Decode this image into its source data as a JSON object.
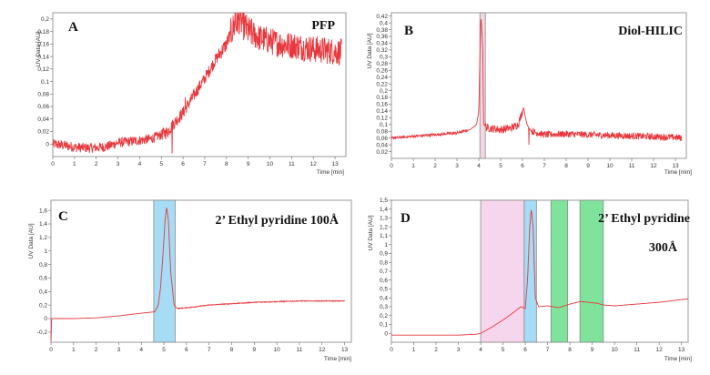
{
  "chart_data": [
    {
      "type": "line",
      "panel": "A",
      "column": "PFP",
      "ylabel": "UV Data [AU]",
      "xlabel": "Time [min]",
      "xlim": [
        0,
        13.5
      ],
      "ylim": [
        -0.02,
        0.21
      ],
      "x_ticks": [
        0,
        1,
        2,
        3,
        4,
        5,
        6,
        7,
        8,
        9,
        10,
        11,
        12,
        13
      ],
      "y_ticks": [
        0,
        0.02,
        0.04,
        0.06,
        0.08,
        0.1,
        0.12,
        0.14,
        0.16,
        0.18,
        0.2
      ],
      "y_tick_labels": [
        "0",
        "0,02",
        "0,04",
        "0,06",
        "0,08",
        "0,1",
        "0,12",
        "0,14",
        "0,16",
        "0,18",
        "0,2"
      ],
      "color": "#e8383d",
      "points": [
        [
          0,
          0
        ],
        [
          0.5,
          -0.002
        ],
        [
          1,
          -0.005
        ],
        [
          1.5,
          -0.006
        ],
        [
          2,
          -0.006
        ],
        [
          2.5,
          -0.004
        ],
        [
          3,
          0.002
        ],
        [
          3.5,
          0.004
        ],
        [
          4,
          0.006
        ],
        [
          4.5,
          0.008
        ],
        [
          5,
          0.015
        ],
        [
          5.3,
          0.02
        ],
        [
          5.5,
          0.03
        ],
        [
          6,
          0.05
        ],
        [
          6.5,
          0.078
        ],
        [
          7,
          0.105
        ],
        [
          7.5,
          0.135
        ],
        [
          8,
          0.16
        ],
        [
          8.3,
          0.185
        ],
        [
          8.6,
          0.2
        ],
        [
          9,
          0.18
        ],
        [
          9.5,
          0.17
        ],
        [
          10,
          0.165
        ],
        [
          10.5,
          0.16
        ],
        [
          11,
          0.158
        ],
        [
          11.5,
          0.155
        ],
        [
          12,
          0.152
        ],
        [
          12.5,
          0.15
        ],
        [
          13,
          0.148
        ],
        [
          13.3,
          0.147
        ]
      ],
      "spikes": [
        [
          5.5,
          -0.015
        ],
        [
          6.1,
          0.075
        ],
        [
          8.4,
          0.212
        ]
      ],
      "noise": [
        [
          0,
          5,
          0.008
        ],
        [
          5,
          7.6,
          0.01
        ],
        [
          7.6,
          8.2,
          0.012
        ],
        [
          8.2,
          9.2,
          0.025
        ],
        [
          9.2,
          13.3,
          0.022
        ]
      ],
      "highlights": []
    },
    {
      "type": "line",
      "panel": "B",
      "column": "Diol-HILIC",
      "ylabel": "UV Data [AU]",
      "xlabel": "Time [min]",
      "xlim": [
        0,
        13.5
      ],
      "ylim": [
        0,
        0.43
      ],
      "x_ticks": [
        0,
        1,
        2,
        3,
        4,
        5,
        6,
        7,
        8,
        9,
        10,
        11,
        12,
        13
      ],
      "y_ticks": [
        0.02,
        0.04,
        0.06,
        0.08,
        0.1,
        0.12,
        0.14,
        0.16,
        0.18,
        0.2,
        0.22,
        0.24,
        0.26,
        0.28,
        0.3,
        0.32,
        0.34,
        0.36,
        0.38,
        0.4,
        0.42
      ],
      "y_tick_labels": [
        "0,02",
        "0,04",
        "0,06",
        "0,08",
        "0,1",
        "0,12",
        "0,14",
        "0,16",
        "0,18",
        "0,2",
        "0,22",
        "0,24",
        "0,26",
        "0,28",
        "0,3",
        "0,32",
        "0,34",
        "0,36",
        "0,38",
        "0,4",
        "0,42"
      ],
      "color": "#e8383d",
      "points": [
        [
          0,
          0.06
        ],
        [
          1,
          0.065
        ],
        [
          2,
          0.07
        ],
        [
          3,
          0.075
        ],
        [
          3.6,
          0.085
        ],
        [
          3.9,
          0.1
        ],
        [
          4,
          0.14
        ],
        [
          4.05,
          0.3
        ],
        [
          4.1,
          0.42
        ],
        [
          4.18,
          0.33
        ],
        [
          4.22,
          0.1
        ],
        [
          4.4,
          0.09
        ],
        [
          5,
          0.085
        ],
        [
          5.5,
          0.09
        ],
        [
          5.8,
          0.1
        ],
        [
          5.95,
          0.13
        ],
        [
          6.05,
          0.15
        ],
        [
          6.2,
          0.1
        ],
        [
          6.4,
          0.08
        ],
        [
          7,
          0.07
        ],
        [
          8,
          0.072
        ],
        [
          9,
          0.07
        ],
        [
          10,
          0.068
        ],
        [
          11,
          0.066
        ],
        [
          12,
          0.064
        ],
        [
          13,
          0.062
        ],
        [
          13.3,
          0.06
        ]
      ],
      "spikes": [
        [
          6.3,
          0.04
        ]
      ],
      "noise": [
        [
          0,
          3.5,
          0.004
        ],
        [
          4.3,
          6,
          0.012
        ],
        [
          6.4,
          13.3,
          0.01
        ]
      ],
      "highlights": [
        {
          "from": 4.05,
          "to": 4.3,
          "color": "#f4d6e4"
        }
      ]
    },
    {
      "type": "line",
      "panel": "C",
      "column": "2’ Ethyl pyridine 100Å",
      "ylabel": "UV Data [AU]",
      "xlabel": "Time [min]",
      "xlim": [
        0,
        13.3
      ],
      "ylim": [
        -0.35,
        1.75
      ],
      "x_ticks": [
        0,
        1,
        2,
        3,
        4,
        5,
        6,
        7,
        8,
        9,
        10,
        11,
        12,
        13
      ],
      "y_ticks": [
        -0.2,
        0,
        0.2,
        0.4,
        0.6,
        0.8,
        1,
        1.2,
        1.4,
        1.6
      ],
      "y_tick_labels": [
        "-0,2",
        "0",
        "0,2",
        "0,4",
        "0,6",
        "0,8",
        "1",
        "1,2",
        "1,4",
        "1,6"
      ],
      "color": "#e8383d",
      "points": [
        [
          0,
          -0.33
        ],
        [
          0.03,
          0
        ],
        [
          1,
          0
        ],
        [
          2,
          0.01
        ],
        [
          3,
          0.04
        ],
        [
          4,
          0.08
        ],
        [
          4.6,
          0.1
        ],
        [
          4.75,
          0.2
        ],
        [
          4.85,
          0.45
        ],
        [
          4.95,
          0.9
        ],
        [
          5.05,
          1.45
        ],
        [
          5.12,
          1.65
        ],
        [
          5.2,
          1.45
        ],
        [
          5.3,
          0.7
        ],
        [
          5.45,
          0.2
        ],
        [
          5.6,
          0.15
        ],
        [
          6,
          0.16
        ],
        [
          7,
          0.2
        ],
        [
          8,
          0.22
        ],
        [
          9,
          0.24
        ],
        [
          10,
          0.25
        ],
        [
          11,
          0.26
        ],
        [
          12,
          0.26
        ],
        [
          13,
          0.26
        ]
      ],
      "spikes": [],
      "noise": [
        [
          5.6,
          13,
          0.006
        ]
      ],
      "highlights": [
        {
          "from": 4.55,
          "to": 5.5,
          "color": "#a6dcf5"
        }
      ]
    },
    {
      "type": "line",
      "panel": "D",
      "column": "2’ Ethyl pyridine",
      "column_note": "300Å",
      "ylabel": "UV Data [AU]",
      "xlabel": "Time [min]",
      "xlim": [
        0,
        13.3
      ],
      "ylim": [
        -0.1,
        1.5
      ],
      "x_ticks": [
        0,
        1,
        2,
        3,
        4,
        5,
        6,
        7,
        8,
        9,
        10,
        11,
        12,
        13
      ],
      "y_ticks": [
        0,
        0.1,
        0.2,
        0.3,
        0.4,
        0.5,
        0.6,
        0.7,
        0.8,
        0.9,
        1,
        1.1,
        1.2,
        1.3,
        1.4,
        1.5
      ],
      "y_tick_labels": [
        "0",
        "0,1",
        "0,2",
        "0,3",
        "0,4",
        "0,5",
        "0,6",
        "0,7",
        "0,8",
        "0,9",
        "1",
        "1,1",
        "1,2",
        "1,3",
        "1,4",
        "1,5"
      ],
      "color": "#e8383d",
      "points": [
        [
          0,
          -0.02
        ],
        [
          1,
          -0.02
        ],
        [
          2,
          -0.02
        ],
        [
          3,
          -0.02
        ],
        [
          3.8,
          -0.01
        ],
        [
          4,
          0
        ],
        [
          4.5,
          0.07
        ],
        [
          5,
          0.15
        ],
        [
          5.5,
          0.24
        ],
        [
          5.8,
          0.3
        ],
        [
          6,
          0.28
        ],
        [
          6.1,
          0.6
        ],
        [
          6.2,
          1.2
        ],
        [
          6.27,
          1.4
        ],
        [
          6.35,
          1.2
        ],
        [
          6.45,
          0.4
        ],
        [
          6.6,
          0.3
        ],
        [
          7,
          0.31
        ],
        [
          7.5,
          0.29
        ],
        [
          8,
          0.33
        ],
        [
          8.5,
          0.36
        ],
        [
          8.8,
          0.35
        ],
        [
          9.2,
          0.34
        ],
        [
          9.5,
          0.32
        ],
        [
          10,
          0.31
        ],
        [
          11,
          0.33
        ],
        [
          12,
          0.35
        ],
        [
          13,
          0.38
        ],
        [
          13.3,
          0.39
        ]
      ],
      "spikes": [],
      "noise": [],
      "highlights": [
        {
          "from": 4.0,
          "to": 5.95,
          "color": "#f6d6ec"
        },
        {
          "from": 5.95,
          "to": 6.5,
          "color": "#a6dcf5"
        },
        {
          "from": 7.15,
          "to": 7.9,
          "color": "#7fe39b"
        },
        {
          "from": 8.45,
          "to": 9.5,
          "color": "#7fe39b"
        }
      ]
    }
  ]
}
